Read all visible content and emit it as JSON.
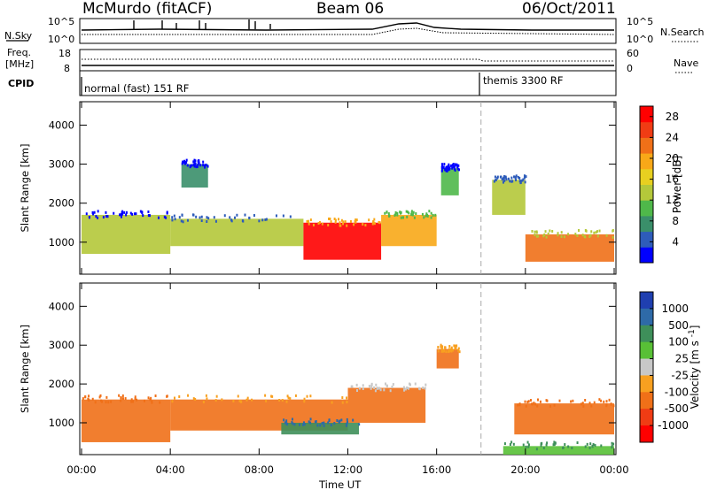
{
  "header": {
    "station": "McMurdo (fitACF)",
    "beam": "Beam 06",
    "date": "06/Oct/2011"
  },
  "summary_panels": {
    "nsky_label": "N.Sky",
    "nsearch_label": "N.Search",
    "nsky_ticks": [
      "10^5",
      "10^0"
    ],
    "freq_label_1": "Freq.",
    "freq_label_2": "[MHz]",
    "freq_ticks": [
      "18",
      "8"
    ],
    "nave_label": "Nave",
    "nave_ticks": [
      "60",
      "0"
    ],
    "cpid_label": "CPID",
    "cpid_modes": [
      {
        "name": "normal (fast) 151 RF",
        "start_hour": 0
      },
      {
        "name": "themis 3300 RF",
        "start_hour": 18
      }
    ]
  },
  "chart_data": [
    {
      "type": "heatmap",
      "title": "",
      "xlabel": "Time UT",
      "ylabel": "Slant Range [km]",
      "x_range_hours": [
        0,
        24
      ],
      "x_tick_labels": [
        "00:00",
        "04:00",
        "08:00",
        "12:00",
        "16:00",
        "20:00",
        "00:00"
      ],
      "ylim": [
        180,
        4600
      ],
      "y_ticks": [
        1000,
        2000,
        3000,
        4000
      ],
      "colorbar": {
        "label": "Power [dB]",
        "ticks": [
          4,
          8,
          12,
          16,
          20,
          24,
          28
        ],
        "range": [
          0,
          30
        ],
        "colors": [
          "#0000ff",
          "#2e5cba",
          "#3a8f6a",
          "#4fb84a",
          "#b4c83a",
          "#e8d020",
          "#f8a818",
          "#f07018",
          "#f03c14",
          "#ff0000"
        ]
      },
      "mode_change_hour": 18,
      "echo_regions": [
        {
          "t0": 0.0,
          "t1": 4.0,
          "r0": 700,
          "r1": 1700,
          "level": 12
        },
        {
          "t0": 4.0,
          "t1": 10.0,
          "r0": 900,
          "r1": 1600,
          "level": 14
        },
        {
          "t0": 10.0,
          "t1": 13.5,
          "r0": 550,
          "r1": 1500,
          "level": 28
        },
        {
          "t0": 13.5,
          "t1": 16.0,
          "r0": 900,
          "r1": 1700,
          "level": 20
        },
        {
          "t0": 4.5,
          "t1": 5.7,
          "r0": 2400,
          "r1": 3000,
          "level": 8
        },
        {
          "t0": 16.2,
          "t1": 17.0,
          "r0": 2200,
          "r1": 2900,
          "level": 10
        },
        {
          "t0": 18.5,
          "t1": 20.0,
          "r0": 1700,
          "r1": 2600,
          "level": 14
        },
        {
          "t0": 20.0,
          "t1": 24.0,
          "r0": 500,
          "r1": 1200,
          "level": 22
        }
      ]
    },
    {
      "type": "heatmap",
      "title": "",
      "xlabel": "Time UT",
      "ylabel": "Slant Range [km]",
      "x_range_hours": [
        0,
        24
      ],
      "x_tick_labels": [
        "00:00",
        "04:00",
        "08:00",
        "12:00",
        "16:00",
        "20:00",
        "00:00"
      ],
      "ylim": [
        180,
        4600
      ],
      "y_ticks": [
        1000,
        2000,
        3000,
        4000
      ],
      "colorbar": {
        "label": "Velocity [m s^-1]",
        "label_main": "Velocity",
        "label_unit": "[m s",
        "label_exp": "-1",
        "label_close": "]",
        "ticks": [
          "1000",
          "500",
          "100",
          "25",
          "-25",
          "-100",
          "-500",
          "-1000"
        ],
        "colors": [
          "#1f3fb0",
          "#2e6aa8",
          "#3e8f5a",
          "#58c036",
          "#c8c8c8",
          "#f8a020",
          "#f07018",
          "#f03c14",
          "#ff0000"
        ]
      },
      "mode_change_hour": 18,
      "echo_regions": [
        {
          "t0": 0.0,
          "t1": 4.0,
          "r0": 500,
          "r1": 1600,
          "velocity": -300
        },
        {
          "t0": 4.0,
          "t1": 12.0,
          "r0": 800,
          "r1": 1600,
          "velocity": -200
        },
        {
          "t0": 12.0,
          "t1": 15.5,
          "r0": 1000,
          "r1": 1900,
          "velocity": -150
        },
        {
          "t0": 9.0,
          "t1": 12.5,
          "r0": 700,
          "r1": 1000,
          "velocity": 400
        },
        {
          "t0": 16.0,
          "t1": 17.0,
          "r0": 2400,
          "r1": 2900,
          "velocity": -200
        },
        {
          "t0": 19.5,
          "t1": 24.0,
          "r0": 700,
          "r1": 1500,
          "velocity": -300
        },
        {
          "t0": 19.0,
          "t1": 24.0,
          "r0": 180,
          "r1": 400,
          "velocity": 50
        }
      ]
    }
  ]
}
